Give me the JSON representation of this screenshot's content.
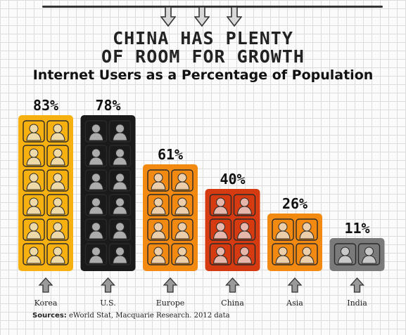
{
  "title_line1": "CHINA HAS PLENTY",
  "title_line2": "OF ROOM FOR GROWTH",
  "subtitle": "Internet Users as a Percentage of Population",
  "source_label": "Sources:",
  "source_text": "eWorld Stat, Macquarie Research. 2012 data",
  "colors": {
    "Korea": "#f6b010",
    "U.S.": "#1a1a1a",
    "Europe": "#f28a12",
    "China": "#d63a10",
    "Asia": "#f28a12",
    "India": "#7a7a7a"
  },
  "icons": {
    "bar_person": "person-in-box-icon",
    "bar_arrow": "up-arrow-icon",
    "header_arrow": "down-arrow-icon"
  },
  "chart_data": {
    "type": "bar",
    "title": "CHINA HAS PLENTY OF ROOM FOR GROWTH",
    "subtitle": "Internet Users as a Percentage of Population",
    "categories": [
      "Korea",
      "U.S.",
      "Europe",
      "China",
      "Asia",
      "India"
    ],
    "values": [
      83,
      78,
      61,
      40,
      26,
      11
    ],
    "value_labels": [
      "83%",
      "78%",
      "61%",
      "40%",
      "26%",
      "11%"
    ],
    "icon_rows": [
      6,
      6,
      4,
      3,
      2,
      1
    ],
    "ylim": [
      0,
      100
    ],
    "grid": true,
    "legend": "none"
  }
}
